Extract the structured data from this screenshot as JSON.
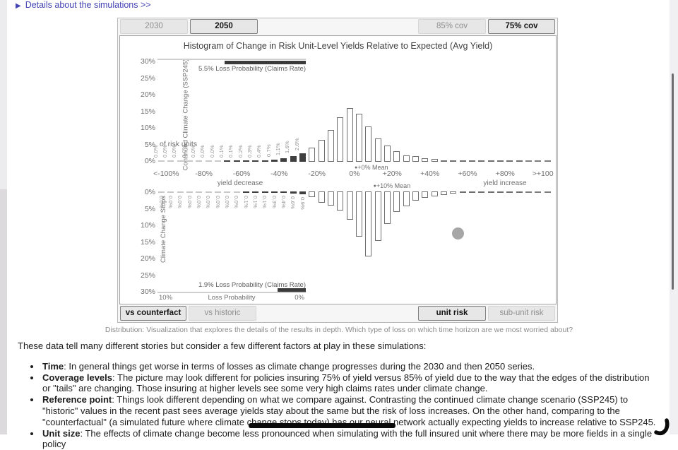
{
  "header": {
    "details_toggle": {
      "arrow": "▶",
      "label": "Details about the simulations >>"
    }
  },
  "panel": {
    "time_tabs": [
      {
        "label": "2030",
        "active": false
      },
      {
        "label": "2050",
        "active": true
      }
    ],
    "coverage_tabs": [
      {
        "label": "85% cov",
        "active": false
      },
      {
        "label": "75% cov",
        "active": true
      }
    ],
    "comparison_tabs": [
      {
        "label": "vs counterfact",
        "active": true
      },
      {
        "label": "vs historic",
        "active": false
      }
    ],
    "risk_tabs": [
      {
        "label": "unit risk",
        "active": true
      },
      {
        "label": "sub-unit risk",
        "active": false
      }
    ]
  },
  "chart_data": {
    "type": "bar",
    "title": "Histogram of Change in Risk Unit-Level Yields Relative to Expected (Avg Yield)",
    "x_tick_labels": [
      "<-100%",
      "-80%",
      "-60%",
      "-40%",
      "-20%",
      "0%",
      "+20%",
      "+40%",
      "+60%",
      "+80%",
      ">+100"
    ],
    "x_axis_notes": {
      "decrease": "yield decrease",
      "increase": "yield increase"
    },
    "y_tick_labels": [
      "0%",
      "5%",
      "10%",
      "15%",
      "20%",
      "25%",
      "30%"
    ],
    "y_unit_note": "of risk units",
    "ylim": [
      0,
      30
    ],
    "x_range_pct": [
      -105,
      105
    ],
    "bin_width_pct": 5,
    "loss_bin_count": 16,
    "grid": false,
    "loss_scale": {
      "left": "10%",
      "center": "Loss Probability",
      "right": "0%",
      "max": 10
    },
    "series": [
      {
        "name": "Continued Climate Change (SSP245)",
        "direction": "up",
        "mean_annotation": "+0% Mean",
        "mean_x_pct": 0,
        "loss_probability": 5.5,
        "loss_label": "5.5% Loss Probability (Claims Rate)",
        "values": [
          0,
          0,
          0,
          0,
          0,
          0,
          0,
          0.1,
          0.1,
          0.2,
          0.3,
          0.4,
          0.7,
          1.1,
          1.6,
          2.6,
          4.2,
          6.6,
          9.6,
          13.4,
          16.2,
          14.4,
          10.6,
          7.0,
          5.0,
          3.2,
          2.0,
          1.6,
          1.0,
          0.8,
          0.5,
          0.4,
          0.3,
          0.2,
          0.2,
          0.1,
          0.1,
          0.1,
          0.1,
          0.05,
          0.05,
          0.05
        ],
        "bar_labels": [
          "0.0%",
          "0.0%",
          "0.0%",
          "0.0%",
          "0.0%",
          "0.0%",
          "0.0%",
          "0.1%",
          "0.1%",
          "0.2%",
          "0.3%",
          "0.4%",
          "0.7%",
          "1.1%",
          "1.6%",
          "2.6%"
        ]
      },
      {
        "name": "Climate Change Stops",
        "direction": "down",
        "mean_annotation": "+10% Mean",
        "mean_x_pct": 10,
        "loss_probability": 1.9,
        "loss_label": "1.9% Loss Probability (Claims Rate)",
        "values": [
          0,
          0,
          0,
          0,
          0,
          0,
          0,
          0,
          0,
          0.1,
          0.1,
          0.1,
          0.3,
          0.4,
          0.6,
          0.9,
          1.8,
          3.4,
          4.2,
          5.8,
          8.6,
          13.6,
          19.6,
          14.8,
          9.8,
          6.2,
          4.4,
          2.8,
          2.0,
          1.4,
          1.0,
          0.7,
          0.5,
          0.3,
          0.2,
          0.2,
          0.1,
          0.1,
          0.1,
          0.05,
          0.05,
          0.05
        ],
        "bar_labels": [
          "0.0%",
          "0.0%",
          "0.0%",
          "0.0%",
          "0.0%",
          "0.0%",
          "0.0%",
          "0.0%",
          "0.0%",
          "0.1%",
          "0.1%",
          "0.1%",
          "0.3%",
          "0.4%",
          "0.6%",
          "0.9%"
        ]
      }
    ]
  },
  "caption": "Distribution: Visualization that explores the details of the results in depth. Which type of loss on which time horizon are we most worried about?",
  "body": {
    "intro": "These data tell many different stories but consider a few different factors at play in these simulations:",
    "bullets": [
      {
        "term": "Time",
        "text": ": In general things get worse in terms of losses as climate change progresses during the 2030 and then 2050 series."
      },
      {
        "term": "Coverage levels",
        "text": ": The picture may look different for policies insuring 75% of yield versus 85% of yield due to the way that the edges of the distribution or \"tails\" are changing. Those insuring at higher levels see some very high claims rates under climate change."
      },
      {
        "term": "Reference point",
        "text": ": Things look different depending on what we compare against. Contrasting the continued climate change scenario (SSP245) to \"historic\" values in the recent past sees average yields stay about the same but the risk of loss increases. On the other hand, comparing to the \"counterfactual\" (a simulated future where climate change stops today) has our neural network actually expecting yields to increase relative to SSP245."
      },
      {
        "term": "Unit size",
        "text": ": The effects of climate change become less pronounced when simulating with the full insured unit where there may be more fields in a single policy"
      }
    ]
  },
  "colors": {
    "link": "#4444b4",
    "bar_fill_loss": "#3f3f3f",
    "bar_outline": "#6e6e6e",
    "active_tab_border": "#818181",
    "gray_dot": "#a6a6a6"
  }
}
